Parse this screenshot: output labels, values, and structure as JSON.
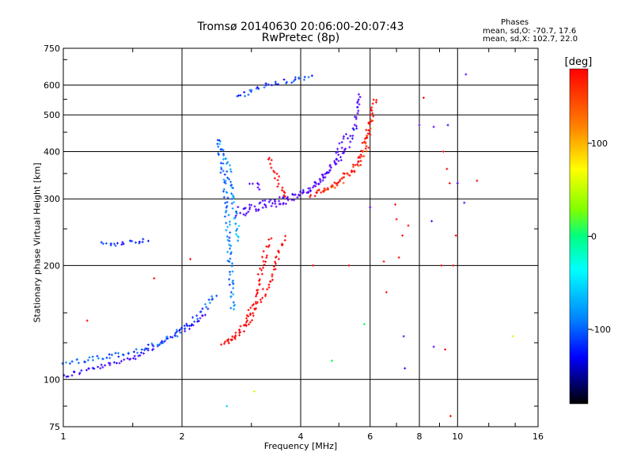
{
  "chart_data": {
    "type": "scatter",
    "title": "Tromsø 20140630 20:06:00-20:07:43",
    "subtitle": "RwPretec (8p)",
    "xlabel": "Frequency [MHz]",
    "ylabel": "Stationary phase Virtual Height [km]",
    "x_scale": "log",
    "y_scale": "log",
    "xlim": [
      1,
      16
    ],
    "ylim": [
      75,
      750
    ],
    "x_ticks": [
      1,
      2,
      4,
      6,
      8,
      10,
      16
    ],
    "x_tick_labels": [
      "1",
      "2",
      "4",
      "6",
      "8",
      "10",
      "16"
    ],
    "y_ticks": [
      75,
      100,
      200,
      300,
      400,
      500,
      600,
      750
    ],
    "y_tick_labels": [
      "75",
      "100",
      "200",
      "300",
      "400",
      "500",
      "600",
      "750"
    ],
    "grid": true,
    "phases": {
      "title": "Phases",
      "o_line": "mean, sd,O: -70.7, 17.6",
      "x_line": "mean, sd,X: 102.7, 22.0"
    },
    "colorbar": {
      "label": "[deg]",
      "range": [
        -180,
        180
      ],
      "ticks": [
        100,
        0,
        -100
      ],
      "tick_labels": [
        "100",
        "0",
        "-100"
      ]
    },
    "traces": [
      {
        "x": [
          1.0,
          1.15,
          1.35,
          1.55,
          1.75,
          1.95,
          2.15,
          2.3
        ],
        "y": [
          102,
          106,
          110,
          116,
          124,
          132,
          140,
          150
        ],
        "phase": -110
      },
      {
        "x": [
          1.0,
          1.1,
          1.3,
          1.5,
          1.7,
          1.9,
          2.1,
          2.3,
          2.45
        ],
        "y": [
          110,
          112,
          115,
          118,
          123,
          130,
          140,
          155,
          170
        ],
        "phase": -85
      },
      {
        "x": [
          1.25,
          1.4,
          1.55,
          1.65
        ],
        "y": [
          228,
          229,
          232,
          235
        ],
        "phase": -95
      },
      {
        "x": [
          2.45,
          2.5,
          2.55,
          2.6,
          2.65,
          2.7
        ],
        "y": [
          430,
          400,
          340,
          280,
          200,
          150
        ],
        "phase": -80
      },
      {
        "x": [
          2.5,
          2.6,
          2.7,
          2.8
        ],
        "y": [
          420,
          380,
          300,
          230
        ],
        "phase": -70
      },
      {
        "x": [
          2.75,
          3.0,
          3.3,
          3.7,
          4.0,
          4.3
        ],
        "y": [
          555,
          580,
          600,
          615,
          625,
          635
        ],
        "phase": -90
      },
      {
        "x": [
          2.75,
          3.0,
          3.3,
          3.7,
          4.1,
          4.5,
          4.9,
          5.2
        ],
        "y": [
          272,
          278,
          286,
          295,
          310,
          335,
          380,
          450
        ],
        "phase": -125
      },
      {
        "x": [
          2.8,
          3.2,
          3.6,
          4.0,
          4.4,
          4.8,
          5.2,
          5.5,
          5.7
        ],
        "y": [
          285,
          292,
          300,
          310,
          330,
          360,
          400,
          470,
          580
        ],
        "phase": -118
      },
      {
        "x": [
          3.0,
          3.1,
          3.2
        ],
        "y": [
          330,
          325,
          318
        ],
        "phase": -125
      },
      {
        "x": [
          4.2,
          4.6,
          5.0,
          5.4,
          5.8,
          6.0,
          6.2
        ],
        "y": [
          305,
          318,
          335,
          360,
          410,
          480,
          560
        ],
        "phase": 130
      },
      {
        "x": [
          4.4,
          4.8,
          5.2,
          5.6,
          5.9,
          6.1
        ],
        "y": [
          310,
          322,
          340,
          370,
          420,
          500
        ],
        "phase": 95
      },
      {
        "x": [
          3.3,
          3.4,
          3.5,
          3.6,
          3.7
        ],
        "y": [
          385,
          360,
          335,
          310,
          300
        ],
        "phase": 150
      },
      {
        "x": [
          2.5,
          2.7,
          2.9,
          3.05,
          3.15,
          3.25,
          3.35
        ],
        "y": [
          122,
          128,
          140,
          160,
          185,
          215,
          238
        ],
        "phase": 140
      },
      {
        "x": [
          2.6,
          2.8,
          3.0,
          3.2,
          3.4,
          3.55,
          3.65
        ],
        "y": [
          125,
          133,
          145,
          165,
          190,
          220,
          240
        ],
        "phase": 115
      }
    ],
    "scatter_points": [
      {
        "x": 1.15,
        "y": 143,
        "phase": 150
      },
      {
        "x": 1.7,
        "y": 185,
        "phase": 155
      },
      {
        "x": 2.1,
        "y": 208,
        "phase": 120
      },
      {
        "x": 3.05,
        "y": 93,
        "phase": 40
      },
      {
        "x": 2.6,
        "y": 85,
        "phase": -60
      },
      {
        "x": 6.95,
        "y": 290,
        "phase": 170
      },
      {
        "x": 7.0,
        "y": 265,
        "phase": 150
      },
      {
        "x": 7.25,
        "y": 240,
        "phase": 140
      },
      {
        "x": 7.5,
        "y": 255,
        "phase": 160
      },
      {
        "x": 7.1,
        "y": 210,
        "phase": 110
      },
      {
        "x": 6.6,
        "y": 170,
        "phase": 100
      },
      {
        "x": 6.5,
        "y": 205,
        "phase": 120
      },
      {
        "x": 6.0,
        "y": 285,
        "phase": -140
      },
      {
        "x": 7.3,
        "y": 130,
        "phase": -120
      },
      {
        "x": 7.35,
        "y": 107,
        "phase": -110
      },
      {
        "x": 8.0,
        "y": 470,
        "phase": -120
      },
      {
        "x": 8.7,
        "y": 465,
        "phase": -140
      },
      {
        "x": 9.2,
        "y": 400,
        "phase": 140
      },
      {
        "x": 9.45,
        "y": 470,
        "phase": -110
      },
      {
        "x": 9.4,
        "y": 360,
        "phase": 150
      },
      {
        "x": 9.55,
        "y": 330,
        "phase": 120
      },
      {
        "x": 10.0,
        "y": 330,
        "phase": -130
      },
      {
        "x": 9.9,
        "y": 240,
        "phase": 150
      },
      {
        "x": 9.75,
        "y": 200,
        "phase": 120
      },
      {
        "x": 9.3,
        "y": 120,
        "phase": 100
      },
      {
        "x": 8.7,
        "y": 122,
        "phase": -120
      },
      {
        "x": 9.6,
        "y": 80,
        "phase": 120
      },
      {
        "x": 10.5,
        "y": 640,
        "phase": -130
      },
      {
        "x": 10.4,
        "y": 293,
        "phase": -150
      },
      {
        "x": 11.2,
        "y": 335,
        "phase": 170
      },
      {
        "x": 13.8,
        "y": 130,
        "phase": 40
      },
      {
        "x": 4.8,
        "y": 112,
        "phase": -10
      },
      {
        "x": 4.3,
        "y": 200,
        "phase": 120
      },
      {
        "x": 5.3,
        "y": 200,
        "phase": 100
      },
      {
        "x": 5.8,
        "y": 140,
        "phase": -20
      },
      {
        "x": 8.6,
        "y": 262,
        "phase": -110
      },
      {
        "x": 8.2,
        "y": 555,
        "phase": 150
      },
      {
        "x": 9.1,
        "y": 200,
        "phase": 110
      }
    ]
  }
}
